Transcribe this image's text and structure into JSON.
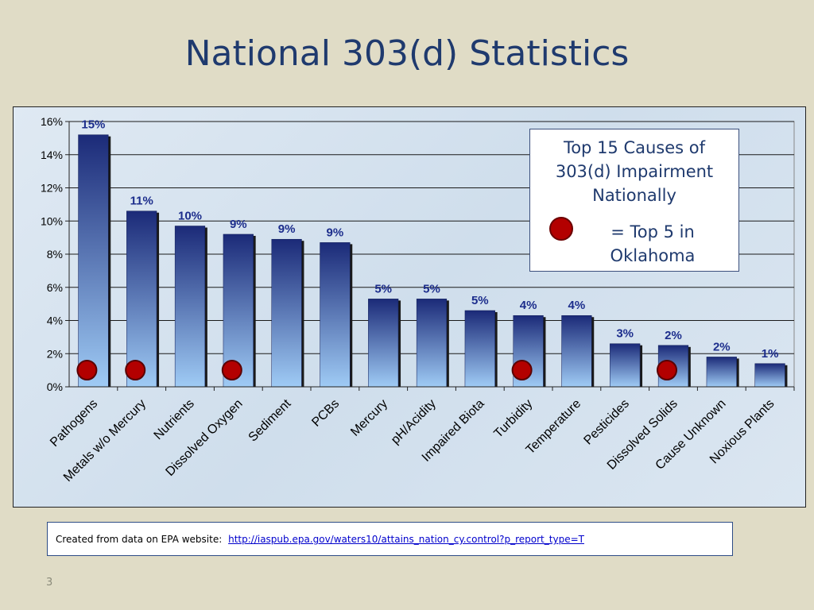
{
  "slide": {
    "title": "National 303(d) Statistics",
    "page_number": "3"
  },
  "legend": {
    "title_lines": [
      "Top 15 Causes of",
      "303(d) Impairment",
      "Nationally"
    ],
    "marker_text_lines": [
      "= Top 5 in",
      "Oklahoma"
    ],
    "marker_color": "#b30000"
  },
  "source": {
    "prefix": "Created from data on EPA website:",
    "link_text": "http://iaspub.epa.gov/waters10/attains_nation_cy.control?p_report_type=T"
  },
  "chart_data": {
    "type": "bar",
    "categories": [
      "Pathogens",
      "Metals w/o Mercury",
      "Nutrients",
      "Dissolved Oxygen",
      "Sediment",
      "PCBs",
      "Mercury",
      "pH/Acidity",
      "Impaired Biota",
      "Turbidity",
      "Temperature",
      "Pesticides",
      "Dissolved Solids",
      "Cause Unknown",
      "Noxious Plants"
    ],
    "values": [
      15.2,
      10.6,
      9.7,
      9.2,
      8.9,
      8.7,
      5.3,
      5.3,
      4.6,
      4.3,
      4.3,
      2.6,
      2.5,
      1.8,
      1.4
    ],
    "data_labels": [
      "15%",
      "11%",
      "10%",
      "9%",
      "9%",
      "9%",
      "5%",
      "5%",
      "5%",
      "4%",
      "4%",
      "3%",
      "2%",
      "2%",
      "1%"
    ],
    "top5_oklahoma": [
      true,
      true,
      false,
      true,
      false,
      false,
      false,
      false,
      false,
      true,
      false,
      false,
      true,
      false,
      false
    ],
    "ylim": [
      0,
      16
    ],
    "y_ticks": [
      "0%",
      "2%",
      "4%",
      "6%",
      "8%",
      "10%",
      "12%",
      "14%",
      "16%"
    ],
    "y_tick_values": [
      0,
      2,
      4,
      6,
      8,
      10,
      12,
      14,
      16
    ],
    "grid": true,
    "colors": {
      "bar_top": "#1b2a78",
      "bar_bottom": "#9fcbf5",
      "label": "#1c2d8c",
      "marker": "#b30000"
    }
  }
}
